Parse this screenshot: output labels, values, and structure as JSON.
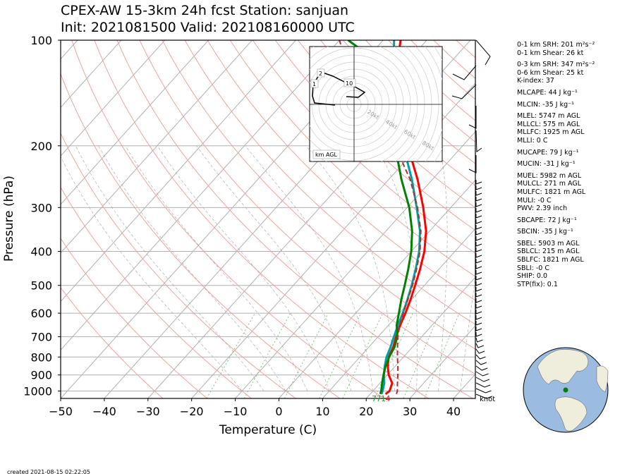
{
  "title_line1": "CPEX-AW 15-3km  24h fcst  Station: sanjuan",
  "title_line2": "Init: 2021081500  Valid: 202108160000 UTC",
  "credit": "created 2021-08-15 02:22:05",
  "chart_data": {
    "type": "line",
    "subtype": "skew-T log-p diagram",
    "xlabel": "Temperature (C)",
    "ylabel": "Pressure (hPa)",
    "xlim": [
      -50,
      45
    ],
    "ylim": [
      1050,
      100
    ],
    "y_scale": "log",
    "x_ticks": [
      -50,
      -40,
      -30,
      -20,
      -10,
      0,
      10,
      20,
      30,
      40
    ],
    "y_ticks": [
      100,
      200,
      300,
      400,
      500,
      600,
      700,
      800,
      900,
      1000
    ],
    "wind_unit_label": "knot",
    "surface_value_labels": [
      {
        "text": "7",
        "color": "#1f9e1f"
      },
      {
        "text": "7",
        "color": "#1f9e1f"
      },
      {
        "text": "1",
        "color": "#1f9e1f"
      },
      {
        "text": "4",
        "color": "#ff0000"
      }
    ],
    "series": [
      {
        "color": "#ff0000",
        "style": "solid",
        "points": [
          [
            1020,
            23.5
          ],
          [
            1000,
            23.8
          ],
          [
            950,
            22.8
          ],
          [
            900,
            20.3
          ],
          [
            850,
            18.3
          ],
          [
            800,
            16.6
          ],
          [
            750,
            15.6
          ],
          [
            700,
            14.1
          ],
          [
            650,
            12.7
          ],
          [
            600,
            11.4
          ],
          [
            550,
            9.8
          ],
          [
            500,
            7.9
          ],
          [
            450,
            5.7
          ],
          [
            400,
            3.0
          ],
          [
            350,
            -0.8
          ],
          [
            300,
            -6.3
          ],
          [
            250,
            -13.3
          ],
          [
            200,
            -22.6
          ],
          [
            175,
            -28.5
          ],
          [
            150,
            -35.5
          ],
          [
            125,
            -40.5
          ],
          [
            110,
            -43.5
          ],
          [
            100,
            -46
          ]
        ]
      },
      {
        "color": "#00a0a0",
        "style": "solid",
        "points": [
          [
            1020,
            22.6
          ],
          [
            1000,
            22.2
          ],
          [
            950,
            21.0
          ],
          [
            900,
            19.2
          ],
          [
            850,
            17.6
          ],
          [
            800,
            16.1
          ],
          [
            750,
            15.0
          ],
          [
            700,
            13.6
          ],
          [
            650,
            12.2
          ],
          [
            600,
            10.8
          ],
          [
            550,
            9.1
          ],
          [
            500,
            7.1
          ],
          [
            450,
            4.7
          ],
          [
            400,
            1.8
          ],
          [
            350,
            -2.2
          ],
          [
            300,
            -7.8
          ],
          [
            250,
            -14.6
          ],
          [
            200,
            -23.6
          ],
          [
            175,
            -29.6
          ],
          [
            150,
            -36.5
          ],
          [
            125,
            -41.5
          ],
          [
            110,
            -44.5
          ],
          [
            100,
            -47.5
          ]
        ]
      },
      {
        "color": "#008000",
        "style": "solid",
        "points": [
          [
            1020,
            22.3
          ],
          [
            1000,
            21.9
          ],
          [
            950,
            20.5
          ],
          [
            900,
            19.1
          ],
          [
            850,
            17.8
          ],
          [
            800,
            16.7
          ],
          [
            750,
            15.9
          ],
          [
            700,
            14.4
          ],
          [
            650,
            11.9
          ],
          [
            600,
            9.9
          ],
          [
            550,
            7.7
          ],
          [
            500,
            5.5
          ],
          [
            450,
            3.0
          ],
          [
            400,
            0.0
          ],
          [
            350,
            -4.0
          ],
          [
            300,
            -9.5
          ],
          [
            250,
            -17.0
          ],
          [
            200,
            -25.5
          ],
          [
            175,
            -31.5
          ],
          [
            150,
            -38.5
          ],
          [
            125,
            -44.0
          ],
          [
            110,
            -50.5
          ],
          [
            100,
            -58
          ]
        ]
      },
      {
        "color": "#b03030",
        "style": "dashed",
        "points": [
          [
            1020,
            26.0
          ],
          [
            1000,
            25.6
          ],
          [
            950,
            24.0
          ],
          [
            900,
            22.4
          ],
          [
            850,
            20.6
          ],
          [
            800,
            18.6
          ],
          [
            750,
            16.6
          ],
          [
            700,
            14.5
          ],
          [
            650,
            12.6
          ],
          [
            600,
            10.9
          ],
          [
            550,
            9.2
          ],
          [
            500,
            7.3
          ],
          [
            450,
            4.9
          ],
          [
            400,
            2.0
          ],
          [
            350,
            -2.0
          ],
          [
            300,
            -7.6
          ],
          [
            250,
            -15.0
          ],
          [
            200,
            -25.5
          ],
          [
            175,
            -32.5
          ],
          [
            150,
            -41.5
          ],
          [
            125,
            -51.0
          ],
          [
            110,
            -56.0
          ],
          [
            100,
            -60.0
          ]
        ]
      }
    ]
  },
  "hodograph": {
    "speed_rings": [
      "20kt",
      "40kt",
      "60kt",
      "80kt"
    ],
    "height_labels": [
      "1",
      "2",
      "10"
    ],
    "legend": "km AGL"
  },
  "indices": [
    {
      "text": "0-1 km SRH: 201 m²s⁻²"
    },
    {
      "text": "0-1 km Shear: 26 kt"
    },
    {
      "text": "0-3 km SRH: 347 m²s⁻²",
      "gap": true
    },
    {
      "text": "0-6 km Shear: 25 kt"
    },
    {
      "text": "K-index: 37"
    },
    {
      "text": "MLCAPE: 44 J kg⁻¹",
      "gap": true
    },
    {
      "text": "MLCIN: -35 J kg⁻¹",
      "gap": true
    },
    {
      "text": "MLEL: 5747 m AGL",
      "gap": true
    },
    {
      "text": "MLLCL: 575 m AGL"
    },
    {
      "text": "MLLFC: 1925 m AGL"
    },
    {
      "text": "MLLI: 0 C"
    },
    {
      "text": "MUCAPE: 79 J kg⁻¹",
      "gap": true
    },
    {
      "text": "MUCIN: -31 J kg⁻¹",
      "gap": true
    },
    {
      "text": "MUEL: 5982 m AGL",
      "gap": true
    },
    {
      "text": "MULCL: 271 m AGL"
    },
    {
      "text": "MULFC: 1821 m AGL"
    },
    {
      "text": "MULI: -0 C"
    },
    {
      "text": "PWV: 2.39 inch"
    },
    {
      "text": "SBCAPE: 72 J kg⁻¹",
      "gap": true
    },
    {
      "text": "SBCIN: -35 J kg⁻¹",
      "gap": true
    },
    {
      "text": "SBEL: 5903 m AGL",
      "gap": true
    },
    {
      "text": "SBLCL: 215 m AGL"
    },
    {
      "text": "SBLFC: 1821 m AGL"
    },
    {
      "text": "SBLI: -0 C"
    },
    {
      "text": "SHIP: 0.0"
    },
    {
      "text": "STP(fix): 0.1"
    }
  ],
  "colors": {
    "grid": "#b0b0b0",
    "dry_adiabat": "#f4a0a0",
    "moist_adiabat": "#a0a0a0",
    "mixing_ratio": "#80c080",
    "globe_ocean": "#9bbbe0",
    "globe_land": "#efeedc",
    "station_marker": "#008000"
  }
}
